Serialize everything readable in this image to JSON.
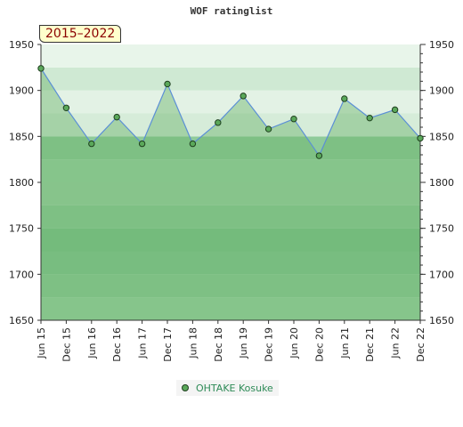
{
  "title": "WOF ratinglist",
  "period_badge": "2015–2022",
  "colors": {
    "area_fill": "#6ab46a",
    "line": "#5b8fd6",
    "marker_fill": "#5aa85a",
    "marker_stroke": "#1f3f1f",
    "badge_text": "#8b0000",
    "legend_text": "#2e8b57"
  },
  "chart_data": {
    "type": "area",
    "title": "WOF ratinglist",
    "xlabel": "",
    "ylabel": "",
    "categories": [
      "Jun 15",
      "Dec 15",
      "Jun 16",
      "Dec 16",
      "Jun 17",
      "Dec 17",
      "Jun 18",
      "Dec 18",
      "Jun 19",
      "Dec 19",
      "Jun 20",
      "Dec 20",
      "Jun 21",
      "Dec 21",
      "Jun 22",
      "Dec 22"
    ],
    "series": [
      {
        "name": "OHTAKE Kosuke",
        "values": [
          1924,
          1881,
          1842,
          1871,
          1842,
          1907,
          1842,
          1865,
          1894,
          1858,
          1869,
          1829,
          1891,
          1870,
          1879,
          1848
        ]
      }
    ],
    "ylim": [
      1650,
      1950
    ],
    "yticks": [
      1650,
      1700,
      1750,
      1800,
      1850,
      1900,
      1950
    ],
    "grid": false,
    "legend_position": "bottom-center",
    "axes_on_both_sides": true
  }
}
